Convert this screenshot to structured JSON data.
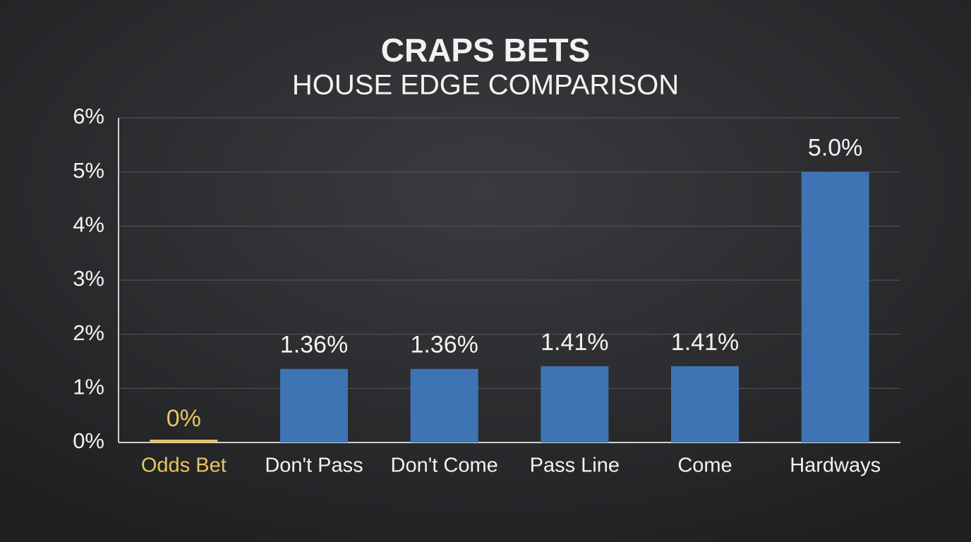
{
  "chart_data": {
    "type": "bar",
    "title": "CRAPS BETS",
    "subtitle": "HOUSE EDGE COMPARISON",
    "categories": [
      "Odds Bet",
      "Don't Pass",
      "Don't Come",
      "Pass Line",
      "Come",
      "Hardways"
    ],
    "values": [
      0,
      1.36,
      1.36,
      1.41,
      1.41,
      5.0
    ],
    "value_labels": [
      "0%",
      "1.36%",
      "1.36%",
      "1.41%",
      "1.41%",
      "5.0%"
    ],
    "colors": [
      "#e8c560",
      "#3f74b4",
      "#3f74b4",
      "#3f74b4",
      "#3f74b4",
      "#3f74b4"
    ],
    "ylim": [
      0,
      6
    ],
    "yticks": [
      {
        "value": 0,
        "label": "0%"
      },
      {
        "value": 1,
        "label": "1%"
      },
      {
        "value": 2,
        "label": "2%"
      },
      {
        "value": 3,
        "label": "3%"
      },
      {
        "value": 4,
        "label": "4%"
      },
      {
        "value": 5,
        "label": "5%"
      },
      {
        "value": 6,
        "label": "6%"
      }
    ],
    "grid": true
  }
}
